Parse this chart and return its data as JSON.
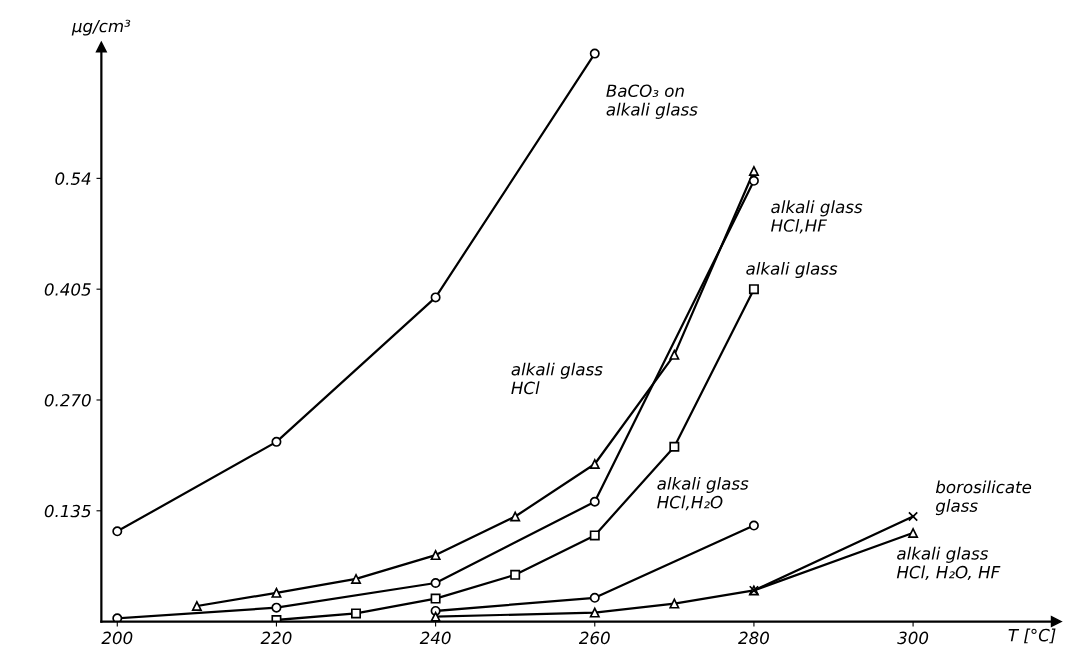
{
  "chart_data": {
    "type": "line",
    "xlabel": "T [°C]",
    "ylabel": "µg/cm³",
    "xlim": [
      198,
      318
    ],
    "ylim": [
      0,
      0.7
    ],
    "xticks": [
      200,
      220,
      240,
      260,
      280,
      300
    ],
    "yticks": [
      {
        "value": 0.135,
        "label": "0.135"
      },
      {
        "value": 0.27,
        "label": "0.270"
      },
      0.405,
      0.54
    ],
    "grid": false,
    "legend": false,
    "line_style": "solid",
    "series": [
      {
        "name": "BaCO₃ on\nalkali glass",
        "color": "#000000",
        "marker": "circle",
        "x": [
          200,
          220,
          240,
          260
        ],
        "values": [
          0.11,
          0.219,
          0.395,
          0.692
        ]
      },
      {
        "name": "alkali glass\nHCl",
        "color": "#000000",
        "marker": "triangle",
        "x": [
          210,
          220,
          230,
          240,
          250,
          260,
          270,
          280
        ],
        "values": [
          0.019,
          0.035,
          0.052,
          0.081,
          0.128,
          0.192,
          0.325,
          0.549
        ]
      },
      {
        "name": "alkali glass\nHCl,HF",
        "color": "#000000",
        "marker": "circle",
        "x": [
          200,
          220,
          240,
          260,
          280
        ],
        "values": [
          0.004,
          0.017,
          0.047,
          0.146,
          0.537
        ]
      },
      {
        "name": "alkali glass",
        "color": "#000000",
        "marker": "square",
        "x": [
          220,
          230,
          240,
          250,
          260,
          270,
          280
        ],
        "values": [
          0.002,
          0.01,
          0.028,
          0.057,
          0.105,
          0.213,
          0.405
        ]
      },
      {
        "name": "alkali glass\nHCl,H₂O",
        "color": "#000000",
        "marker": "circle",
        "x": [
          240,
          260,
          280
        ],
        "values": [
          0.013,
          0.029,
          0.117
        ]
      },
      {
        "name": "alkali glass\nHCl, H₂O, HF",
        "color": "#000000",
        "marker": "triangle",
        "x": [
          240,
          260,
          270,
          280,
          300
        ],
        "values": [
          0.006,
          0.011,
          0.022,
          0.038,
          0.108
        ]
      },
      {
        "name": "borosilicate\nglass",
        "color": "#000000",
        "marker": "cross",
        "x": [
          280,
          300
        ],
        "values": [
          0.038,
          0.128
        ]
      }
    ]
  }
}
